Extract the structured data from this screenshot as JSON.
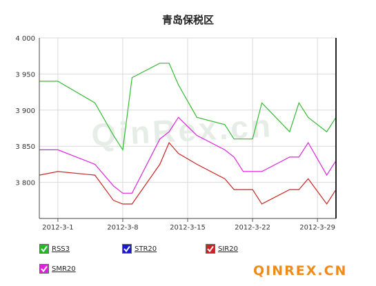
{
  "chart_data": {
    "type": "line",
    "title": "青岛保税区",
    "x_tick_labels": [
      "2012-3-1",
      "2012-3-8",
      "2012-3-15",
      "2012-3-22",
      "2012-3-29"
    ],
    "y_tick_labels": [
      "3 800",
      "3 850",
      "3 900",
      "3 950",
      "4 000"
    ],
    "ylim": [
      3750,
      4000
    ],
    "y_ticks": [
      3800,
      3850,
      3900,
      3950,
      4000
    ],
    "x_range": [
      "2012-02-28",
      "2012-03-31"
    ],
    "grid": true,
    "legend_position": "bottom",
    "series": [
      {
        "name": "RSS3",
        "color": "#33bb33",
        "x": [
          "2012-02-28",
          "2012-03-01",
          "2012-03-05",
          "2012-03-07",
          "2012-03-08",
          "2012-03-09",
          "2012-03-12",
          "2012-03-13",
          "2012-03-14",
          "2012-03-16",
          "2012-03-19",
          "2012-03-20",
          "2012-03-21",
          "2012-03-22",
          "2012-03-23",
          "2012-03-26",
          "2012-03-27",
          "2012-03-28",
          "2012-03-30",
          "2012-03-31"
        ],
        "values": [
          3940,
          3940,
          3910,
          3865,
          3845,
          3945,
          3965,
          3965,
          3935,
          3890,
          3880,
          3860,
          3860,
          3860,
          3910,
          3870,
          3910,
          3890,
          3870,
          3890
        ]
      },
      {
        "name": "STR20",
        "color": "#1a1acc",
        "x": [],
        "values": []
      },
      {
        "name": "SIR20",
        "color": "#cc2222",
        "x": [
          "2012-02-28",
          "2012-03-01",
          "2012-03-05",
          "2012-03-07",
          "2012-03-08",
          "2012-03-09",
          "2012-03-12",
          "2012-03-13",
          "2012-03-14",
          "2012-03-16",
          "2012-03-19",
          "2012-03-20",
          "2012-03-21",
          "2012-03-22",
          "2012-03-23",
          "2012-03-26",
          "2012-03-27",
          "2012-03-28",
          "2012-03-30",
          "2012-03-31"
        ],
        "values": [
          3810,
          3815,
          3810,
          3775,
          3770,
          3770,
          3825,
          3855,
          3840,
          3825,
          3805,
          3790,
          3790,
          3790,
          3770,
          3790,
          3790,
          3805,
          3770,
          3790
        ]
      },
      {
        "name": "SMR20",
        "color": "#dd22dd",
        "x": [
          "2012-02-28",
          "2012-03-01",
          "2012-03-05",
          "2012-03-07",
          "2012-03-08",
          "2012-03-09",
          "2012-03-12",
          "2012-03-13",
          "2012-03-14",
          "2012-03-16",
          "2012-03-19",
          "2012-03-20",
          "2012-03-21",
          "2012-03-22",
          "2012-03-23",
          "2012-03-26",
          "2012-03-27",
          "2012-03-28",
          "2012-03-30",
          "2012-03-31"
        ],
        "values": [
          3845,
          3845,
          3825,
          3795,
          3785,
          3785,
          3860,
          3870,
          3890,
          3865,
          3845,
          3835,
          3815,
          3815,
          3815,
          3835,
          3835,
          3855,
          3810,
          3830
        ]
      }
    ]
  },
  "legend": [
    {
      "label": "RSS3",
      "box_color": "#22bb22"
    },
    {
      "label": "STR20",
      "box_color": "#1a1acc"
    },
    {
      "label": "SIR20",
      "box_color": "#cc2222"
    },
    {
      "label": "SMR20",
      "box_color": "#dd22dd"
    }
  ],
  "watermark": "QinRex.cn",
  "brand": "QINREX.CN"
}
